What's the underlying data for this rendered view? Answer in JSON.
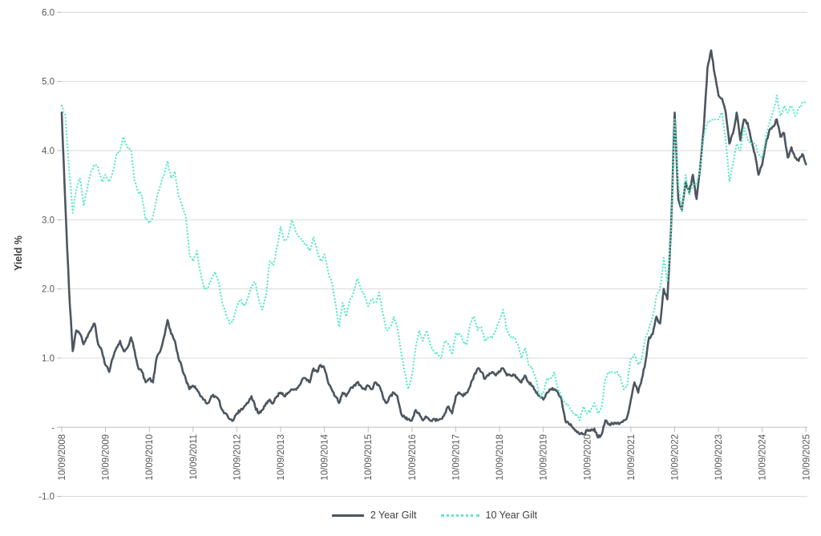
{
  "chart_data": {
    "type": "line",
    "title": "",
    "xlabel": "",
    "ylabel": "Yield %",
    "ylim": [
      -1.0,
      6.0
    ],
    "grid": "horizontal",
    "legend_position": "bottom-center",
    "y_ticks": [
      6.0,
      5.0,
      4.0,
      3.0,
      2.0,
      1.0,
      0.0,
      -1.0
    ],
    "y_tick_labels": [
      "6.0",
      "5.0",
      "4.0",
      "3.0",
      "2.0",
      "1.0",
      "-",
      "-1.0"
    ],
    "x_tick_labels": [
      "10/09/2008",
      "10/09/2009",
      "10/09/2010",
      "10/09/2011",
      "10/09/2012",
      "10/09/2013",
      "10/09/2014",
      "10/09/2015",
      "10/09/2016",
      "10/09/2017",
      "10/09/2018",
      "10/09/2019",
      "10/09/2020",
      "10/09/2021",
      "10/09/2022",
      "10/09/2023",
      "10/09/2024",
      "10/09/2025"
    ],
    "x_start": "10/09/2008",
    "x_end": "10/09/2025",
    "x_frequency": "monthly",
    "colors": {
      "series_2y": "#4D565F",
      "series_10y": "#5FE8C8",
      "gridline": "#D9D9D9",
      "axis_line": "#C0C0C0",
      "tick_label": "#595959",
      "axis_title": "#404040"
    },
    "series": [
      {
        "name": "2 Year Gilt",
        "color": "#4D565F",
        "style": "solid",
        "values": [
          4.55,
          3.2,
          2.0,
          1.1,
          1.4,
          1.35,
          1.2,
          1.3,
          1.4,
          1.5,
          1.2,
          1.1,
          0.9,
          0.8,
          1.0,
          1.15,
          1.25,
          1.1,
          1.15,
          1.3,
          1.1,
          0.85,
          0.8,
          0.65,
          0.7,
          0.65,
          1.0,
          1.1,
          1.3,
          1.55,
          1.35,
          1.25,
          1.0,
          0.85,
          0.7,
          0.55,
          0.6,
          0.55,
          0.45,
          0.4,
          0.35,
          0.45,
          0.45,
          0.4,
          0.25,
          0.2,
          0.12,
          0.1,
          0.2,
          0.25,
          0.3,
          0.35,
          0.45,
          0.3,
          0.2,
          0.25,
          0.35,
          0.4,
          0.35,
          0.45,
          0.5,
          0.45,
          0.5,
          0.55,
          0.55,
          0.6,
          0.7,
          0.7,
          0.65,
          0.85,
          0.8,
          0.9,
          0.85,
          0.65,
          0.55,
          0.45,
          0.35,
          0.5,
          0.45,
          0.55,
          0.6,
          0.65,
          0.6,
          0.55,
          0.6,
          0.55,
          0.65,
          0.6,
          0.45,
          0.35,
          0.45,
          0.5,
          0.45,
          0.2,
          0.15,
          0.12,
          0.1,
          0.25,
          0.2,
          0.1,
          0.15,
          0.1,
          0.12,
          0.1,
          0.12,
          0.2,
          0.3,
          0.2,
          0.45,
          0.5,
          0.45,
          0.5,
          0.6,
          0.75,
          0.85,
          0.8,
          0.7,
          0.75,
          0.8,
          0.75,
          0.8,
          0.85,
          0.75,
          0.75,
          0.75,
          0.7,
          0.65,
          0.75,
          0.65,
          0.6,
          0.5,
          0.45,
          0.4,
          0.5,
          0.55,
          0.55,
          0.5,
          0.4,
          0.1,
          0.05,
          0.0,
          -0.05,
          -0.1,
          -0.1,
          -0.05,
          -0.05,
          -0.02,
          -0.15,
          -0.1,
          0.1,
          0.05,
          0.05,
          0.05,
          0.06,
          0.1,
          0.15,
          0.4,
          0.65,
          0.5,
          0.7,
          0.95,
          1.3,
          1.35,
          1.6,
          1.5,
          2.0,
          1.85,
          2.85,
          4.55,
          3.3,
          3.15,
          3.55,
          3.4,
          3.65,
          3.3,
          3.75,
          4.35,
          5.2,
          5.45,
          5.1,
          4.8,
          4.75,
          4.55,
          4.1,
          4.25,
          4.55,
          4.15,
          4.45,
          4.4,
          4.15,
          3.95,
          3.65,
          3.8,
          4.1,
          4.3,
          4.35,
          4.45,
          4.2,
          4.25,
          3.9,
          4.05,
          3.9,
          3.85,
          3.95,
          3.8
        ]
      },
      {
        "name": "10 Year Gilt",
        "color": "#5FE8C8",
        "style": "dotted",
        "values": [
          4.65,
          4.5,
          3.75,
          3.1,
          3.45,
          3.6,
          3.2,
          3.45,
          3.7,
          3.8,
          3.75,
          3.55,
          3.65,
          3.55,
          3.7,
          3.95,
          4.0,
          4.2,
          4.05,
          4.0,
          3.55,
          3.4,
          3.35,
          3.0,
          2.95,
          3.05,
          3.3,
          3.5,
          3.65,
          3.85,
          3.6,
          3.7,
          3.35,
          3.2,
          3.05,
          2.5,
          2.4,
          2.55,
          2.25,
          2.0,
          2.0,
          2.15,
          2.25,
          2.1,
          1.8,
          1.65,
          1.5,
          1.55,
          1.75,
          1.85,
          1.75,
          1.85,
          2.05,
          2.1,
          1.85,
          1.7,
          1.9,
          2.4,
          2.35,
          2.6,
          2.9,
          2.7,
          2.75,
          3.0,
          2.85,
          2.75,
          2.7,
          2.65,
          2.55,
          2.75,
          2.55,
          2.4,
          2.5,
          2.25,
          2.1,
          1.8,
          1.45,
          1.8,
          1.6,
          1.85,
          1.95,
          2.15,
          2.0,
          1.9,
          1.75,
          1.85,
          1.8,
          1.95,
          1.65,
          1.4,
          1.45,
          1.6,
          1.45,
          1.1,
          0.8,
          0.55,
          0.75,
          1.15,
          1.4,
          1.25,
          1.4,
          1.2,
          1.1,
          1.05,
          1.0,
          1.25,
          1.2,
          1.05,
          1.35,
          1.35,
          1.25,
          1.2,
          1.5,
          1.6,
          1.4,
          1.45,
          1.25,
          1.3,
          1.3,
          1.4,
          1.55,
          1.7,
          1.4,
          1.3,
          1.3,
          1.2,
          1.0,
          1.15,
          0.9,
          0.85,
          0.7,
          0.45,
          0.5,
          0.7,
          0.7,
          0.8,
          0.55,
          0.45,
          0.35,
          0.3,
          0.2,
          0.2,
          0.1,
          0.3,
          0.2,
          0.25,
          0.35,
          0.2,
          0.3,
          0.7,
          0.8,
          0.8,
          0.8,
          0.75,
          0.55,
          0.6,
          1.0,
          1.05,
          0.9,
          1.0,
          1.3,
          1.45,
          1.6,
          1.9,
          2.0,
          2.45,
          2.1,
          2.8,
          4.45,
          3.5,
          3.1,
          3.65,
          3.35,
          3.5,
          3.5,
          3.75,
          4.2,
          4.4,
          4.45,
          4.45,
          4.45,
          4.55,
          4.15,
          3.55,
          3.8,
          4.1,
          4.0,
          4.35,
          4.15,
          4.1,
          4.1,
          3.95,
          3.9,
          4.2,
          4.4,
          4.55,
          4.8,
          4.5,
          4.65,
          4.55,
          4.65,
          4.5,
          4.6,
          4.7,
          4.7
        ]
      }
    ]
  }
}
